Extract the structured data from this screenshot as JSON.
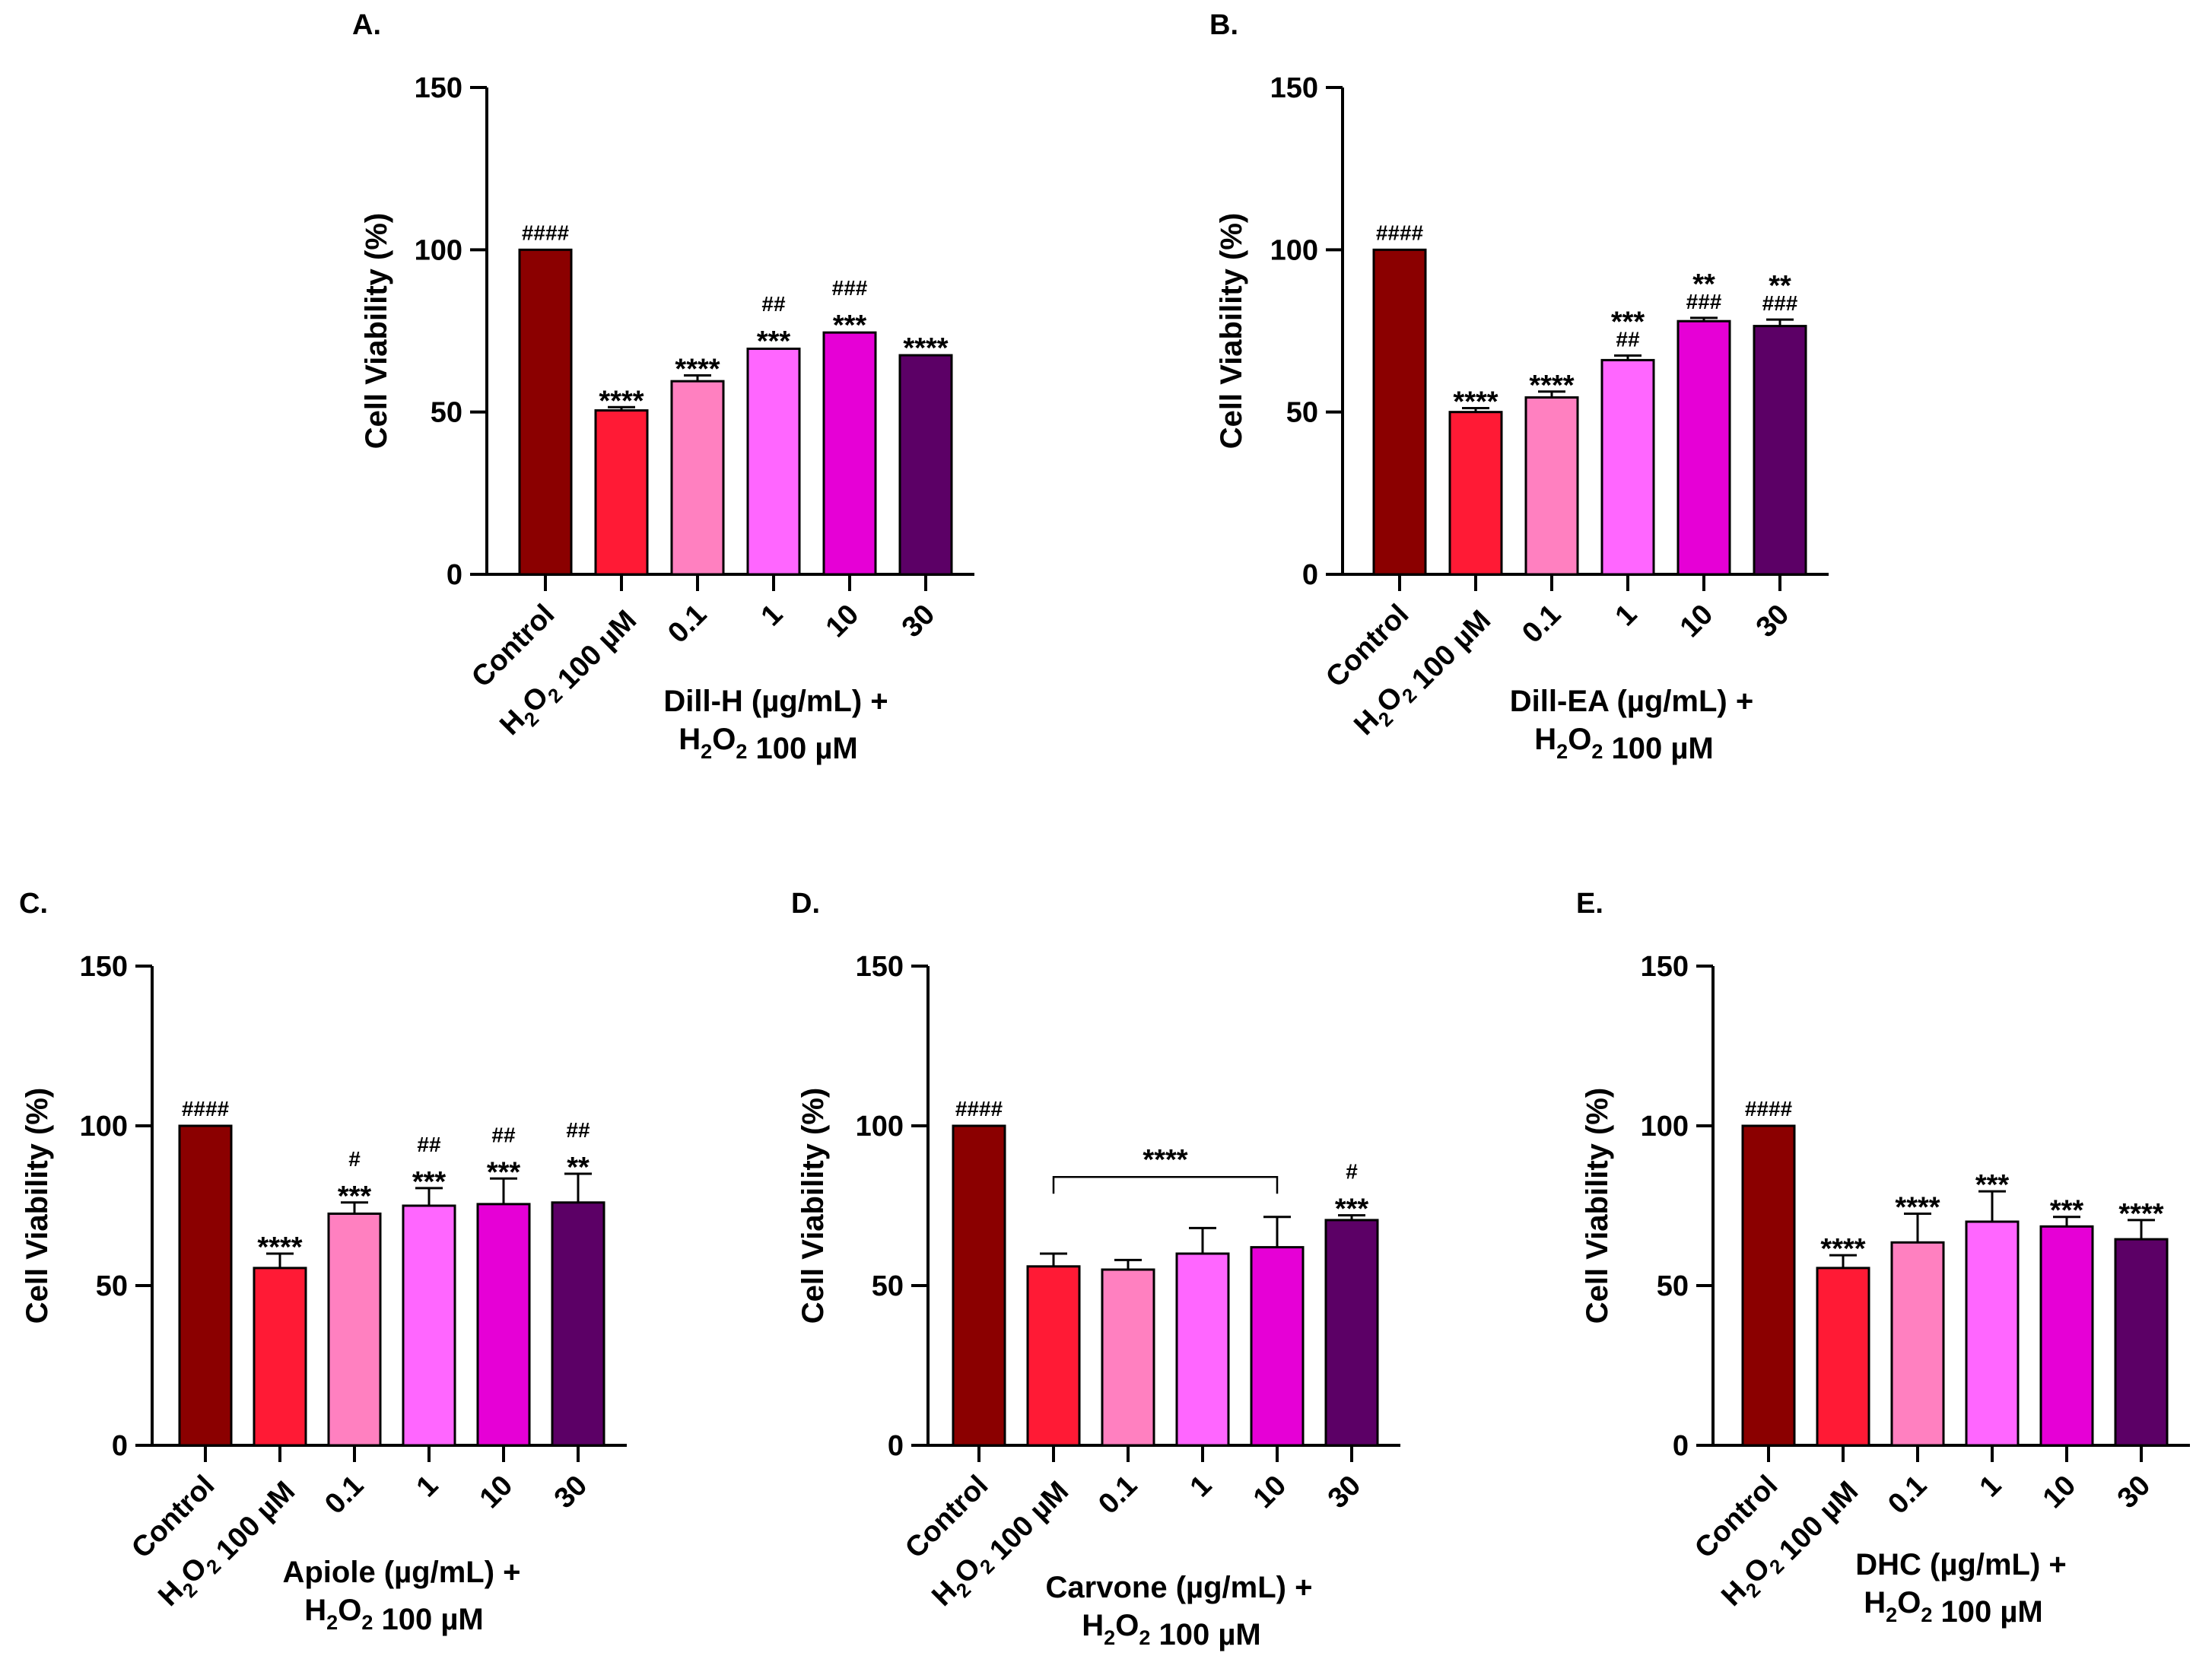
{
  "colors": {
    "Control": "#8b0000",
    "H2O2": "#ff1a35",
    "c01": "#ff80c0",
    "c1": "#ff66ff",
    "c10": "#e600d6",
    "c30": "#5c0066",
    "axis": "#000000"
  },
  "chart_data": [
    {
      "type": "bar",
      "panel_label": "A.",
      "ylabel": "Cell Viability (%)",
      "ylim": [
        0,
        150
      ],
      "yticks": [
        "0",
        "50",
        "100",
        "150"
      ],
      "categories": [
        "Control",
        "H2O2 100 µM",
        "0.1",
        "1",
        "10",
        "30"
      ],
      "xlabel_line1": "Dill-H (µg/mL) +",
      "xlabel_line2": "H2O2 100 µM",
      "values": [
        100,
        50.5,
        59.5,
        69.5,
        74.5,
        67.5
      ],
      "errors": [
        0.2,
        1.0,
        1.8,
        0.3,
        0.3,
        0.2
      ],
      "annotations": [
        [
          "####"
        ],
        [
          "****"
        ],
        [
          "****"
        ],
        [
          "##",
          "***"
        ],
        [
          "###",
          "***"
        ],
        [
          "****"
        ]
      ]
    },
    {
      "type": "bar",
      "panel_label": "B.",
      "ylabel": "Cell Viability (%)",
      "ylim": [
        0,
        150
      ],
      "yticks": [
        "0",
        "50",
        "100",
        "150"
      ],
      "categories": [
        "Control",
        "H2O2 100 µM",
        "0.1",
        "1",
        "10",
        "30"
      ],
      "xlabel_line1": "Dill-EA (µg/mL) +",
      "xlabel_line2": "H2O2 100 µM",
      "values": [
        100,
        50,
        54.5,
        66,
        78,
        76.5
      ],
      "errors": [
        0.2,
        1.2,
        1.8,
        1.4,
        1.0,
        2.0
      ],
      "annotations": [
        [
          "####"
        ],
        [
          "****"
        ],
        [
          "****"
        ],
        [
          "***",
          "##"
        ],
        [
          "**",
          "###"
        ],
        [
          "**",
          "###"
        ]
      ]
    },
    {
      "type": "bar",
      "panel_label": "C.",
      "ylabel": "Cell Viability (%)",
      "ylim": [
        0,
        150
      ],
      "yticks": [
        "0",
        "50",
        "100",
        "150"
      ],
      "categories": [
        "Control",
        "H2O2 100 µM",
        "0.1",
        "1",
        "10",
        "30"
      ],
      "xlabel_line1": "Apiole (µg/mL) +",
      "xlabel_line2": "H2O2 100 µM",
      "values": [
        100,
        55.5,
        72.5,
        75,
        75.5,
        76
      ],
      "errors": [
        0.2,
        4.5,
        3.5,
        5.5,
        8.0,
        9.0
      ],
      "annotations": [
        [
          "####"
        ],
        [
          "****"
        ],
        [
          "#",
          "***"
        ],
        [
          "##",
          "***"
        ],
        [
          "##",
          "***"
        ],
        [
          "##",
          "**"
        ]
      ]
    },
    {
      "type": "bar",
      "panel_label": "D.",
      "ylabel": "Cell Viability (%)",
      "ylim": [
        0,
        150
      ],
      "yticks": [
        "0",
        "50",
        "100",
        "150"
      ],
      "categories": [
        "Control",
        "H2O2 100 µM",
        "0.1",
        "1",
        "10",
        "30"
      ],
      "xlabel_line1": "Carvone (µg/mL) +",
      "xlabel_line2": "H2O2 100 µM",
      "values": [
        100,
        56,
        55,
        60,
        62,
        70.5
      ],
      "errors": [
        0.2,
        4.0,
        3.0,
        8.0,
        9.5,
        1.5
      ],
      "annotations": [
        [
          "####"
        ],
        [],
        [],
        [],
        [],
        [
          "#",
          "***"
        ]
      ],
      "bracket": {
        "from": 1,
        "to": 4,
        "y": 84,
        "label": "****"
      }
    },
    {
      "type": "bar",
      "panel_label": "E.",
      "ylabel": "Cell Viability (%)",
      "ylim": [
        0,
        150
      ],
      "yticks": [
        "0",
        "50",
        "100",
        "150"
      ],
      "categories": [
        "Control",
        "H2O2 100 µM",
        "0.1",
        "1",
        "10",
        "30"
      ],
      "xlabel_line1": "DHC (µg/mL) +",
      "xlabel_line2": "H2O2 100 µM",
      "values": [
        100,
        55.5,
        63.5,
        70,
        68.5,
        64.5
      ],
      "errors": [
        0.2,
        4.0,
        9.0,
        9.5,
        3.0,
        6.0
      ],
      "annotations": [
        [
          "####"
        ],
        [
          "****"
        ],
        [
          "****"
        ],
        [
          "***"
        ],
        [
          "***"
        ],
        [
          "****"
        ]
      ]
    }
  ]
}
